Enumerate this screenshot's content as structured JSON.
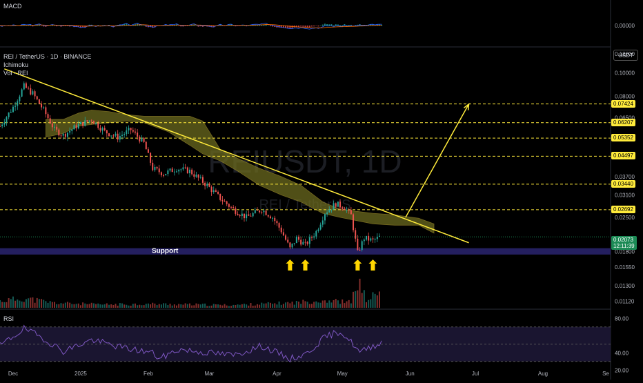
{
  "panes": {
    "macd": {
      "label": "MACD",
      "axis_label": "0.00000"
    },
    "main": {
      "symbol": "REI / TetherUS · 1D · BINANCE",
      "indicator1": "Ichimoku",
      "indicator2": "Vol · REI",
      "currency": "USDT",
      "watermark": "REIUSDT, 1D",
      "watermark_sub": "REI / TetherUS",
      "support_label": "Support",
      "last_price": "0.02073",
      "countdown": "12:11:39"
    },
    "rsi": {
      "label": "RSI"
    }
  },
  "colors": {
    "up": "#26a69a",
    "down": "#ef5350",
    "trend": "#ffeb3b",
    "cloud": "#6b6a1f",
    "support_band": "#2a2470",
    "rsi_line": "#7e57c2",
    "level_tag": "#ffeb3b"
  },
  "chart_data": [
    {
      "type": "candlestick",
      "title": "REI / TetherUS · 1D · BINANCE",
      "scale": "log",
      "ylim": [
        0.0105,
        0.125
      ],
      "y_ticks": [
        "0.12000",
        "0.10000",
        "0.08000",
        "0.06500",
        "0.03700",
        "0.03100",
        "0.02500",
        "0.01800",
        "0.01550",
        "0.01300",
        "0.01120"
      ],
      "x_ticks": [
        "Dec",
        "2025",
        "Feb",
        "Mar",
        "Apr",
        "May",
        "Jun",
        "Jul",
        "Aug",
        "Se"
      ],
      "x_range": [
        "2024-11-25",
        "2025-09-01"
      ],
      "resistance_levels": [
        "0.07424",
        "0.06207",
        "0.05352",
        "0.04497",
        "0.03440",
        "0.02692"
      ],
      "support_zone": [
        0.0175,
        0.0186
      ],
      "trendline": {
        "start": [
          "2024-11-27",
          0.104
        ],
        "end": [
          "2025-06-28",
          0.0196
        ]
      },
      "projection_arrow": {
        "start": [
          "2025-05-30",
          0.025
        ],
        "end": [
          "2025-06-28",
          0.0742
        ]
      },
      "support_arrows": [
        "2025-04-07",
        "2025-04-14",
        "2025-05-08",
        "2025-05-15"
      ],
      "price_path": [
        [
          "2024-11-25",
          0.06
        ],
        [
          "2024-12-01",
          0.072
        ],
        [
          "2024-12-06",
          0.088
        ],
        [
          "2024-12-10",
          0.082
        ],
        [
          "2024-12-15",
          0.07
        ],
        [
          "2024-12-20",
          0.058
        ],
        [
          "2024-12-24",
          0.055
        ],
        [
          "2024-12-30",
          0.06
        ],
        [
          "2025-01-06",
          0.064
        ],
        [
          "2025-01-12",
          0.057
        ],
        [
          "2025-01-18",
          0.054
        ],
        [
          "2025-01-24",
          0.058
        ],
        [
          "2025-01-30",
          0.051
        ],
        [
          "2025-02-03",
          0.04
        ],
        [
          "2025-02-08",
          0.038
        ],
        [
          "2025-02-14",
          0.04
        ],
        [
          "2025-02-20",
          0.039
        ],
        [
          "2025-02-28",
          0.034
        ],
        [
          "2025-03-06",
          0.03
        ],
        [
          "2025-03-12",
          0.027
        ],
        [
          "2025-03-18",
          0.025
        ],
        [
          "2025-03-25",
          0.027
        ],
        [
          "2025-03-30",
          0.025
        ],
        [
          "2025-04-03",
          0.022
        ],
        [
          "2025-04-07",
          0.0185
        ],
        [
          "2025-04-10",
          0.0205
        ],
        [
          "2025-04-14",
          0.0192
        ],
        [
          "2025-04-19",
          0.0218
        ],
        [
          "2025-04-23",
          0.0262
        ],
        [
          "2025-04-28",
          0.0285
        ],
        [
          "2025-05-02",
          0.0275
        ],
        [
          "2025-05-05",
          0.0255
        ],
        [
          "2025-05-08",
          0.0178
        ],
        [
          "2025-05-11",
          0.0205
        ],
        [
          "2025-05-15",
          0.02
        ],
        [
          "2025-05-18",
          0.0207
        ]
      ],
      "ichimoku_cloud": {
        "top": [
          [
            "2024-12-16",
            0.064
          ],
          [
            "2024-12-24",
            0.064
          ],
          [
            "2024-12-31",
            0.068
          ],
          [
            "2025-01-06",
            0.07
          ],
          [
            "2025-01-14",
            0.069
          ],
          [
            "2025-01-22",
            0.067
          ],
          [
            "2025-01-30",
            0.066
          ],
          [
            "2025-02-10",
            0.066
          ],
          [
            "2025-02-20",
            0.066
          ],
          [
            "2025-02-26",
            0.063
          ],
          [
            "2025-03-06",
            0.048
          ],
          [
            "2025-03-14",
            0.044
          ],
          [
            "2025-03-24",
            0.04
          ],
          [
            "2025-04-03",
            0.037
          ],
          [
            "2025-04-12",
            0.034
          ],
          [
            "2025-04-22",
            0.029
          ],
          [
            "2025-04-30",
            0.027
          ],
          [
            "2025-05-15",
            0.026
          ],
          [
            "2025-05-25",
            0.0256
          ],
          [
            "2025-06-05",
            0.0248
          ],
          [
            "2025-06-12",
            0.0235
          ]
        ],
        "bottom": [
          [
            "2024-12-16",
            0.054
          ],
          [
            "2024-12-24",
            0.056
          ],
          [
            "2024-12-31",
            0.06
          ],
          [
            "2025-01-06",
            0.061
          ],
          [
            "2025-01-14",
            0.062
          ],
          [
            "2025-01-22",
            0.063
          ],
          [
            "2025-01-30",
            0.062
          ],
          [
            "2025-02-10",
            0.057
          ],
          [
            "2025-02-20",
            0.05
          ],
          [
            "2025-02-26",
            0.046
          ],
          [
            "2025-03-06",
            0.043
          ],
          [
            "2025-03-14",
            0.039
          ],
          [
            "2025-03-24",
            0.034
          ],
          [
            "2025-04-03",
            0.031
          ],
          [
            "2025-04-12",
            0.029
          ],
          [
            "2025-04-22",
            0.026
          ],
          [
            "2025-04-30",
            0.025
          ],
          [
            "2025-05-15",
            0.0235
          ],
          [
            "2025-05-25",
            0.0232
          ],
          [
            "2025-06-05",
            0.0232
          ],
          [
            "2025-06-12",
            0.0215
          ]
        ]
      }
    },
    {
      "type": "bar",
      "title": "Vol · REI",
      "scale": "relative",
      "volume_path": [
        [
          "2024-11-25",
          0.25
        ],
        [
          "2024-12-06",
          0.35
        ],
        [
          "2024-12-20",
          0.18
        ],
        [
          "2025-01-10",
          0.12
        ],
        [
          "2025-02-03",
          0.14
        ],
        [
          "2025-03-10",
          0.1
        ],
        [
          "2025-04-07",
          0.18
        ],
        [
          "2025-04-23",
          0.28
        ],
        [
          "2025-05-05",
          0.2
        ],
        [
          "2025-05-08",
          1.0
        ],
        [
          "2025-05-12",
          0.3
        ],
        [
          "2025-05-18",
          0.55
        ]
      ]
    },
    {
      "type": "line",
      "title": "RSI",
      "ylim": [
        25,
        85
      ],
      "y_ticks": [
        "80.00",
        "40.00",
        "20.00"
      ],
      "rsi_path": [
        [
          "2024-11-25",
          48
        ],
        [
          "2024-12-06",
          68
        ],
        [
          "2024-12-14",
          58
        ],
        [
          "2024-12-24",
          42
        ],
        [
          "2025-01-06",
          55
        ],
        [
          "2025-01-20",
          46
        ],
        [
          "2025-02-03",
          40
        ],
        [
          "2025-02-06",
          33
        ],
        [
          "2025-02-15",
          44
        ],
        [
          "2025-03-01",
          40
        ],
        [
          "2025-03-12",
          37
        ],
        [
          "2025-03-25",
          48
        ],
        [
          "2025-04-07",
          33
        ],
        [
          "2025-04-14",
          38
        ],
        [
          "2025-04-23",
          58
        ],
        [
          "2025-04-30",
          65
        ],
        [
          "2025-05-06",
          50
        ],
        [
          "2025-05-09",
          40
        ],
        [
          "2025-05-14",
          47
        ],
        [
          "2025-05-19",
          52
        ]
      ]
    },
    {
      "type": "line",
      "title": "MACD",
      "x_range": [
        "2024-11-25",
        "2025-05-19"
      ]
    }
  ]
}
